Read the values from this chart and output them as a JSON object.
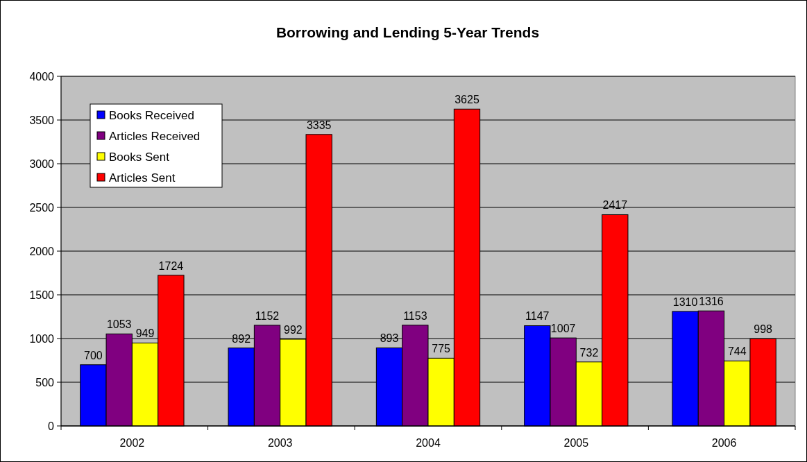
{
  "chart_data": {
    "type": "bar",
    "title": "Borrowing and Lending 5-Year Trends",
    "categories": [
      "2002",
      "2003",
      "2004",
      "2005",
      "2006"
    ],
    "series": [
      {
        "name": "Books Received",
        "color": "#0000ff",
        "values": [
          700,
          892,
          893,
          1147,
          1310
        ]
      },
      {
        "name": "Articles Received",
        "color": "#800080",
        "values": [
          1053,
          1152,
          1153,
          1007,
          1316
        ]
      },
      {
        "name": "Books Sent",
        "color": "#ffff00",
        "values": [
          949,
          992,
          775,
          732,
          744
        ]
      },
      {
        "name": "Articles Sent",
        "color": "#ff0000",
        "values": [
          1724,
          3335,
          3625,
          2417,
          998
        ]
      }
    ],
    "ylim": [
      0,
      4000
    ],
    "yticks": [
      0,
      500,
      1000,
      1500,
      2000,
      2500,
      3000,
      3500,
      4000
    ],
    "grid": "y",
    "legend": "top left",
    "data_labels": true
  }
}
